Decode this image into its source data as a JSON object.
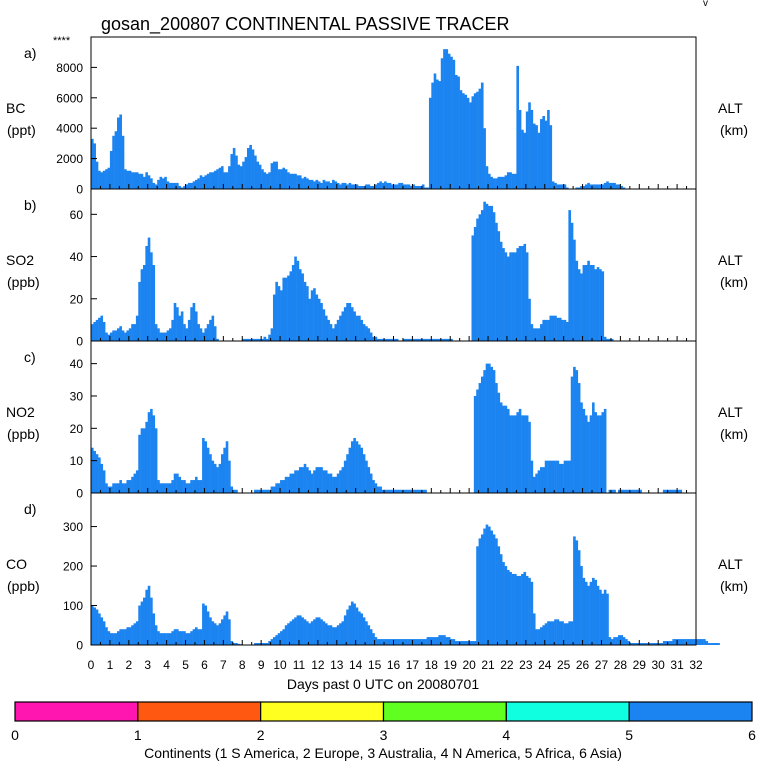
{
  "figure": {
    "title": "gosan_200807 CONTINENTAL PASSIVE TRACER",
    "corner_mark": "****",
    "top_right_mark": "v"
  },
  "chart_data": [
    {
      "type": "bar",
      "panel": "a)",
      "label": "BC",
      "unit": "(ppt)",
      "right_label": "ALT",
      "right_unit": "(km)",
      "color": "#1c84f0",
      "ylim": [
        0,
        10000
      ],
      "yticks": [
        "0",
        "2000",
        "4000",
        "6000",
        "8000"
      ],
      "ytick_values": [
        0,
        2000,
        4000,
        6000,
        8000
      ],
      "x_start": 0,
      "x_step": 0.125,
      "values": [
        3300,
        3000,
        1800,
        1200,
        1100,
        1200,
        1300,
        1400,
        2500,
        3500,
        3800,
        4700,
        4900,
        3500,
        1300,
        1200,
        1200,
        1100,
        1100,
        1100,
        1000,
        1000,
        800,
        1100,
        900,
        700,
        400,
        300,
        600,
        800,
        700,
        800,
        500,
        400,
        400,
        400,
        400,
        200,
        100,
        200,
        300,
        400,
        400,
        500,
        600,
        700,
        900,
        800,
        900,
        1000,
        1100,
        1100,
        1200,
        1300,
        1400,
        1500,
        1100,
        1100,
        1500,
        2300,
        2700,
        2200,
        1600,
        1500,
        1800,
        2100,
        2700,
        2900,
        2600,
        2200,
        1800,
        1600,
        1300,
        1100,
        1000,
        1100,
        1700,
        1800,
        1800,
        1300,
        1300,
        1400,
        1300,
        1100,
        1000,
        1000,
        1000,
        900,
        900,
        700,
        800,
        700,
        600,
        600,
        500,
        600,
        500,
        400,
        600,
        500,
        500,
        400,
        600,
        500,
        400,
        300,
        400,
        400,
        300,
        400,
        300,
        300,
        300,
        200,
        200,
        200,
        300,
        300,
        200,
        200,
        300,
        400,
        500,
        400,
        500,
        400,
        400,
        300,
        300,
        300,
        400,
        400,
        300,
        300,
        300,
        200,
        300,
        200,
        200,
        200,
        300,
        100,
        100,
        6000,
        7000,
        7600,
        7200,
        7100,
        8600,
        9200,
        9200,
        8900,
        8700,
        8500,
        7500,
        7400,
        6500,
        6300,
        6200,
        6000,
        5700,
        6100,
        6300,
        6400,
        6600,
        7000,
        4000,
        1500,
        1000,
        800,
        700,
        700,
        800,
        800,
        800,
        900,
        1100,
        1100,
        1000,
        1000,
        8100,
        5200,
        3900,
        3700,
        5100,
        5700,
        5200,
        4300,
        4200,
        3700,
        4600,
        4800,
        4500,
        5200,
        4200,
        500,
        400,
        300,
        300,
        300,
        300,
        100,
        0,
        0,
        0,
        100,
        100,
        200,
        200,
        300,
        400,
        300,
        300,
        300,
        300,
        300,
        300,
        400,
        500,
        400,
        400,
        400,
        300,
        300,
        200,
        100,
        0,
        0,
        0,
        0,
        0,
        0,
        0,
        0,
        0,
        0,
        0,
        0,
        0,
        0,
        0
      ]
    },
    {
      "type": "bar",
      "panel": "b)",
      "label": "SO2",
      "unit": "(ppb)",
      "right_label": "ALT",
      "right_unit": "(km)",
      "color": "#1c84f0",
      "ylim": [
        0,
        72
      ],
      "yticks": [
        "0",
        "20",
        "40",
        "60"
      ],
      "ytick_values": [
        0,
        20,
        40,
        60
      ],
      "x_start": 0,
      "x_step": 0.125,
      "values": [
        8,
        9,
        10,
        11,
        12,
        9,
        4,
        3,
        4,
        5,
        5,
        6,
        7,
        5,
        4,
        5,
        6,
        8,
        8,
        12,
        28,
        34,
        36,
        45,
        49,
        42,
        36,
        8,
        6,
        4,
        4,
        4,
        5,
        6,
        10,
        18,
        16,
        12,
        14,
        8,
        6,
        10,
        16,
        18,
        14,
        8,
        6,
        4,
        6,
        8,
        10,
        12,
        7,
        1,
        0,
        0,
        0,
        0,
        0,
        0,
        0,
        0,
        0,
        0,
        1,
        1,
        1,
        1,
        1,
        1,
        1,
        1,
        1,
        2,
        1,
        3,
        6,
        22,
        28,
        26,
        24,
        30,
        30,
        31,
        33,
        36,
        40,
        38,
        34,
        32,
        28,
        26,
        20,
        24,
        25,
        22,
        20,
        18,
        15,
        12,
        10,
        8,
        6,
        8,
        10,
        12,
        14,
        16,
        18,
        18,
        16,
        14,
        12,
        12,
        10,
        8,
        7,
        6,
        4,
        2,
        2,
        1,
        1,
        1,
        1,
        1,
        1,
        1,
        1,
        1,
        0,
        0,
        1,
        1,
        1,
        1,
        1,
        1,
        1,
        1,
        1,
        1,
        1,
        1,
        1,
        1,
        1,
        1,
        1,
        1,
        1,
        1,
        1,
        0,
        0,
        0,
        0,
        0,
        0,
        0,
        0,
        50,
        54,
        58,
        60,
        62,
        66,
        65,
        64,
        64,
        61,
        56,
        52,
        47,
        44,
        42,
        40,
        42,
        42,
        42,
        44,
        45,
        45,
        46,
        42,
        20,
        8,
        6,
        6,
        6,
        8,
        10,
        10,
        10,
        12,
        12,
        12,
        11,
        11,
        10,
        10,
        9,
        62,
        56,
        48,
        38,
        34,
        32,
        36,
        36,
        38,
        36,
        36,
        34,
        35,
        34,
        33,
        2,
        1,
        1,
        1,
        0,
        0,
        0,
        0,
        0,
        0,
        0,
        0,
        0,
        0,
        0,
        0,
        0,
        0,
        0,
        0,
        0,
        0,
        0,
        0,
        0,
        0,
        0,
        0,
        0,
        0,
        0,
        0,
        0,
        0,
        0,
        0,
        0,
        0,
        0,
        0,
        0,
        0,
        0,
        0,
        0,
        0,
        0,
        0,
        0
      ]
    },
    {
      "type": "bar",
      "panel": "c)",
      "label": "NO2",
      "unit": "(ppb)",
      "right_label": "ALT",
      "right_unit": "(km)",
      "color": "#1c84f0",
      "ylim": [
        0,
        47
      ],
      "yticks": [
        "0",
        "10",
        "20",
        "30",
        "40"
      ],
      "ytick_values": [
        0,
        10,
        20,
        30,
        40
      ],
      "x_start": 0,
      "x_step": 0.125,
      "values": [
        14,
        13,
        12,
        11,
        9,
        7,
        3,
        2,
        2,
        3,
        3,
        3,
        4,
        3,
        3,
        4,
        4,
        5,
        6,
        7,
        18,
        20,
        20,
        22,
        25,
        26,
        24,
        20,
        4,
        3,
        3,
        3,
        3,
        3,
        4,
        6,
        6,
        5,
        4,
        4,
        3,
        3,
        4,
        4,
        5,
        4,
        4,
        17,
        16,
        14,
        12,
        10,
        9,
        8,
        9,
        12,
        14,
        16,
        10,
        2,
        1,
        1,
        0,
        0,
        0,
        0,
        0,
        0,
        0,
        1,
        1,
        1,
        1,
        1,
        1,
        1,
        2,
        2,
        3,
        3,
        4,
        4,
        5,
        5,
        6,
        6,
        7,
        7,
        8,
        8,
        9,
        8,
        7,
        6,
        7,
        8,
        8,
        8,
        7,
        7,
        6,
        6,
        5,
        5,
        6,
        7,
        8,
        10,
        12,
        14,
        16,
        17,
        16,
        15,
        14,
        12,
        10,
        8,
        6,
        4,
        3,
        2,
        2,
        1,
        1,
        1,
        1,
        1,
        1,
        1,
        1,
        1,
        1,
        1,
        1,
        1,
        1,
        1,
        1,
        1,
        1,
        1,
        0,
        0,
        0,
        0,
        0,
        0,
        0,
        0,
        0,
        0,
        0,
        0,
        0,
        0,
        0,
        0,
        0,
        0,
        0,
        0,
        30,
        32,
        34,
        36,
        38,
        40,
        40,
        39,
        38,
        34,
        31,
        28,
        27,
        27,
        26,
        24,
        24,
        24,
        25,
        26,
        24,
        24,
        24,
        22,
        10,
        5,
        6,
        7,
        8,
        8,
        10,
        10,
        10,
        10,
        10,
        10,
        9,
        9,
        10,
        10,
        10,
        36,
        39,
        38,
        34,
        28,
        26,
        24,
        22,
        24,
        28,
        25,
        24,
        24,
        25,
        26,
        0,
        1,
        1,
        1,
        0,
        1,
        1,
        1,
        1,
        1,
        1,
        1,
        1,
        1,
        1,
        0,
        0,
        0,
        0,
        0,
        0,
        0,
        0,
        0,
        1,
        1,
        1,
        1,
        1,
        1,
        1,
        1,
        0,
        0,
        0,
        0,
        0,
        0,
        0,
        0,
        0,
        0,
        0,
        0,
        0,
        0,
        0
      ]
    },
    {
      "type": "bar",
      "panel": "d)",
      "label": "CO",
      "unit": "(ppb)",
      "right_label": "ALT",
      "right_unit": "(km)",
      "color": "#1c84f0",
      "ylim": [
        0,
        385
      ],
      "yticks": [
        "0",
        "100",
        "200",
        "300"
      ],
      "ytick_values": [
        0,
        100,
        200,
        300
      ],
      "x_start": 0,
      "x_step": 0.125,
      "values": [
        100,
        95,
        90,
        80,
        70,
        60,
        45,
        35,
        30,
        30,
        30,
        35,
        40,
        40,
        40,
        45,
        45,
        50,
        55,
        60,
        100,
        110,
        120,
        140,
        150,
        120,
        80,
        50,
        35,
        30,
        30,
        30,
        30,
        30,
        35,
        40,
        40,
        35,
        35,
        35,
        30,
        30,
        35,
        40,
        45,
        40,
        40,
        105,
        100,
        85,
        70,
        60,
        55,
        50,
        55,
        65,
        75,
        85,
        65,
        10,
        5,
        5,
        3,
        2,
        0,
        0,
        0,
        0,
        0,
        5,
        5,
        5,
        5,
        5,
        5,
        10,
        15,
        20,
        25,
        30,
        35,
        40,
        50,
        55,
        60,
        65,
        70,
        75,
        75,
        70,
        65,
        60,
        55,
        60,
        65,
        70,
        70,
        65,
        60,
        55,
        50,
        50,
        45,
        45,
        50,
        55,
        60,
        75,
        90,
        100,
        110,
        105,
        95,
        85,
        80,
        70,
        60,
        50,
        40,
        30,
        20,
        15,
        15,
        15,
        15,
        15,
        15,
        15,
        15,
        15,
        15,
        15,
        15,
        15,
        15,
        15,
        15,
        15,
        15,
        15,
        15,
        15,
        20,
        20,
        20,
        20,
        20,
        25,
        25,
        25,
        20,
        20,
        15,
        15,
        10,
        10,
        10,
        10,
        10,
        10,
        10,
        10,
        10,
        250,
        270,
        280,
        295,
        305,
        300,
        290,
        280,
        270,
        250,
        230,
        210,
        200,
        190,
        185,
        180,
        180,
        175,
        175,
        180,
        185,
        175,
        170,
        160,
        80,
        40,
        40,
        45,
        50,
        55,
        60,
        60,
        60,
        65,
        65,
        60,
        60,
        55,
        55,
        60,
        60,
        275,
        265,
        240,
        200,
        170,
        160,
        150,
        160,
        170,
        165,
        150,
        140,
        130,
        140,
        130,
        20,
        15,
        20,
        20,
        25,
        25,
        20,
        15,
        10,
        5,
        5,
        5,
        5,
        5,
        5,
        5,
        5,
        5,
        5,
        5,
        5,
        5,
        5,
        10,
        10,
        10,
        10,
        15,
        15,
        15,
        15,
        15,
        15,
        15,
        15,
        15,
        15,
        15,
        15,
        15,
        15,
        10,
        5,
        5,
        5,
        5,
        5
      ]
    }
  ],
  "x_axis": {
    "tick_labels": [
      "0",
      "1",
      "2",
      "3",
      "4",
      "5",
      "6",
      "7",
      "8",
      "9",
      "10",
      "11",
      "12",
      "13",
      "14",
      "15",
      "16",
      "17",
      "18",
      "19",
      "20",
      "21",
      "22",
      "23",
      "24",
      "25",
      "26",
      "27",
      "28",
      "29",
      "30",
      "31",
      "32"
    ],
    "xlabel": "Days past 0 UTC on 20080701",
    "xlim": [
      0,
      32
    ]
  },
  "colorbar": {
    "tick_labels": [
      "0",
      "1",
      "2",
      "3",
      "4",
      "5",
      "6"
    ],
    "colors": [
      "#ff15b0",
      "#ff5810",
      "#ffff20",
      "#60ff20",
      "#10ffe0",
      "#1c84f0"
    ],
    "caption": "Continents (1 S America, 2 Europe, 3 Australia, 4 N America, 5 Africa, 6 Asia)"
  }
}
